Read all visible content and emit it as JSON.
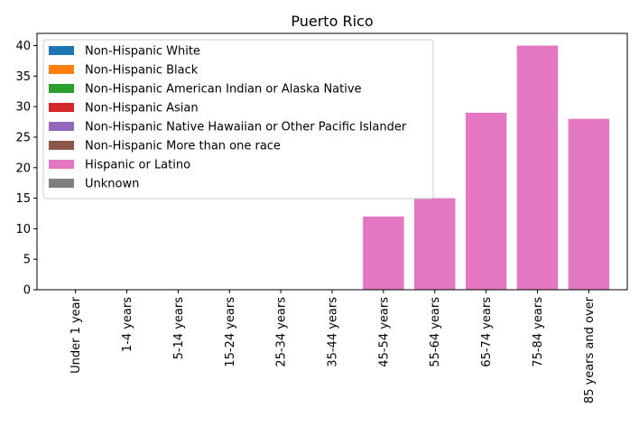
{
  "chart_data": {
    "type": "bar",
    "title": "Puerto Rico",
    "xlabel": "",
    "ylabel": "",
    "ylim": [
      0,
      42
    ],
    "yticks": [
      0,
      5,
      10,
      15,
      20,
      25,
      30,
      35,
      40
    ],
    "grid": false,
    "legend_position": "top-left",
    "categories": [
      "Under 1 year",
      "1-4 years",
      "5-14 years",
      "15-24 years",
      "25-34 years",
      "35-44 years",
      "45-54 years",
      "55-64 years",
      "65-74 years",
      "75-84 years",
      "85 years and over"
    ],
    "series": [
      {
        "name": "Non-Hispanic White",
        "color": "#1f77b4",
        "values": [
          0,
          0,
          0,
          0,
          0,
          0,
          0,
          0,
          0,
          0,
          0
        ]
      },
      {
        "name": "Non-Hispanic Black",
        "color": "#ff7f0e",
        "values": [
          0,
          0,
          0,
          0,
          0,
          0,
          0,
          0,
          0,
          0,
          0
        ]
      },
      {
        "name": "Non-Hispanic American Indian or Alaska Native",
        "color": "#2ca02c",
        "values": [
          0,
          0,
          0,
          0,
          0,
          0,
          0,
          0,
          0,
          0,
          0
        ]
      },
      {
        "name": "Non-Hispanic Asian",
        "color": "#d62728",
        "values": [
          0,
          0,
          0,
          0,
          0,
          0,
          0,
          0,
          0,
          0,
          0
        ]
      },
      {
        "name": "Non-Hispanic Native Hawaiian or Other Pacific Islander",
        "color": "#9467bd",
        "values": [
          0,
          0,
          0,
          0,
          0,
          0,
          0,
          0,
          0,
          0,
          0
        ]
      },
      {
        "name": "Non-Hispanic More than one race",
        "color": "#8c564b",
        "values": [
          0,
          0,
          0,
          0,
          0,
          0,
          0,
          0,
          0,
          0,
          0
        ]
      },
      {
        "name": "Hispanic or Latino",
        "color": "#e377c2",
        "values": [
          0,
          0,
          0,
          0,
          0,
          0,
          12,
          15,
          29,
          40,
          28
        ]
      },
      {
        "name": "Unknown",
        "color": "#7f7f7f",
        "values": [
          0,
          0,
          0,
          0,
          0,
          0,
          0,
          0,
          0,
          0,
          0
        ]
      }
    ]
  }
}
